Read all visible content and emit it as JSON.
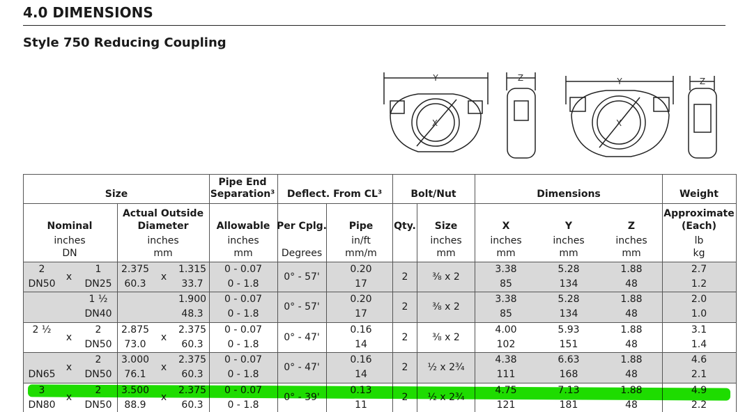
{
  "header": {
    "section": "4.0 DIMENSIONS",
    "subtitle": "Style 750 Reducing Coupling"
  },
  "diagram": {
    "labels": [
      "Y",
      "Z",
      "X",
      "Y",
      "Z",
      "X"
    ]
  },
  "table": {
    "groups": {
      "size": "Size",
      "separation": [
        "Pipe End",
        "Separation³"
      ],
      "deflect": "Deflect. From CL³",
      "bolt": "Bolt/Nut",
      "dimensions": "Dimensions",
      "weight": "Weight"
    },
    "columns": [
      {
        "title": [
          "Nominal"
        ],
        "units": [
          "inches",
          "DN"
        ]
      },
      {
        "title": [
          "Actual Outside",
          "Diameter"
        ],
        "units": [
          "inches",
          "mm"
        ]
      },
      {
        "title": [
          "Allowable"
        ],
        "units": [
          "inches",
          "mm"
        ]
      },
      {
        "title": [
          "Per Cplg."
        ],
        "units": [
          "Degrees"
        ]
      },
      {
        "title": [
          "Pipe"
        ],
        "units": [
          "in/ft",
          "mm/m"
        ]
      },
      {
        "title": [
          "Qty."
        ],
        "units": []
      },
      {
        "title": [
          "Size"
        ],
        "units": [
          "inches",
          "mm"
        ]
      },
      {
        "title": [
          "X"
        ],
        "units": [
          "inches",
          "mm"
        ]
      },
      {
        "title": [
          "Y"
        ],
        "units": [
          "inches",
          "mm"
        ]
      },
      {
        "title": [
          "Z"
        ],
        "units": [
          "inches",
          "mm"
        ]
      },
      {
        "title": [
          "Approximate",
          "(Each)"
        ],
        "units": [
          "lb",
          "kg"
        ]
      }
    ],
    "multiply": "x",
    "rows": [
      {
        "nominal_left": [
          "2",
          "DN50"
        ],
        "nominal_right": [
          "1",
          "DN25"
        ],
        "od_left": [
          "2.375",
          "60.3"
        ],
        "od_right": [
          "1.315",
          "33.7"
        ],
        "allowable": [
          "0 - 0.07",
          "0 - 1.8"
        ],
        "per_cplg": "0° - 57'",
        "pipe": [
          "0.20",
          "17"
        ],
        "qty": "2",
        "bolt_size": "⅜  x  2",
        "x": [
          "3.38",
          "85"
        ],
        "y": [
          "5.28",
          "134"
        ],
        "z": [
          "1.88",
          "48"
        ],
        "weight": [
          "2.7",
          "1.2"
        ]
      },
      {
        "nominal_left": [
          null,
          null
        ],
        "nominal_right": [
          "1 ½",
          "DN40"
        ],
        "od_left": [
          null,
          null
        ],
        "od_right": [
          "1.900",
          "48.3"
        ],
        "allowable": [
          "0 - 0.07",
          "0 - 1.8"
        ],
        "per_cplg": "0° - 57'",
        "pipe": [
          "0.20",
          "17"
        ],
        "qty": "2",
        "bolt_size": "⅜  x  2",
        "x": [
          "3.38",
          "85"
        ],
        "y": [
          "5.28",
          "134"
        ],
        "z": [
          "1.88",
          "48"
        ],
        "weight": [
          "2.0",
          "1.0"
        ]
      },
      {
        "nominal_left": [
          "2 ½",
          null
        ],
        "nominal_right": [
          "2",
          "DN50"
        ],
        "od_left": [
          "2.875",
          "73.0"
        ],
        "od_right": [
          "2.375",
          "60.3"
        ],
        "allowable": [
          "0 - 0.07",
          "0 - 1.8"
        ],
        "per_cplg": "0° - 47'",
        "pipe": [
          "0.16",
          "14"
        ],
        "qty": "2",
        "bolt_size": "⅜  x  2",
        "x": [
          "4.00",
          "102"
        ],
        "y": [
          "5.93",
          "151"
        ],
        "z": [
          "1.88",
          "48"
        ],
        "weight": [
          "3.1",
          "1.4"
        ]
      },
      {
        "nominal_left": [
          null,
          "DN65"
        ],
        "nominal_right": [
          "2",
          "DN50"
        ],
        "od_left": [
          "3.000",
          "76.1"
        ],
        "od_right": [
          "2.375",
          "60.3"
        ],
        "allowable": [
          "0 - 0.07",
          "0 - 1.8"
        ],
        "per_cplg": "0° - 47'",
        "pipe": [
          "0.16",
          "14"
        ],
        "qty": "2",
        "bolt_size": "½  x 2¾",
        "x": [
          "4.38",
          "111"
        ],
        "y": [
          "6.63",
          "168"
        ],
        "z": [
          "1.88",
          "48"
        ],
        "weight": [
          "4.6",
          "2.1"
        ]
      },
      {
        "nominal_left": [
          "3",
          "DN80"
        ],
        "nominal_right": [
          "2",
          "DN50"
        ],
        "od_left": [
          "3.500",
          "88.9"
        ],
        "od_right": [
          "2.375",
          "60.3"
        ],
        "allowable": [
          "0 - 0.07",
          "0 - 1.8"
        ],
        "per_cplg": "0° - 39'",
        "pipe": [
          "0.13",
          "11"
        ],
        "qty": "2",
        "bolt_size": "½  x 2¾",
        "x": [
          "4.75",
          "121"
        ],
        "y": [
          "7.13",
          "181"
        ],
        "z": [
          "1.88",
          "48"
        ],
        "weight": [
          "4.9",
          "2.2"
        ]
      }
    ]
  }
}
